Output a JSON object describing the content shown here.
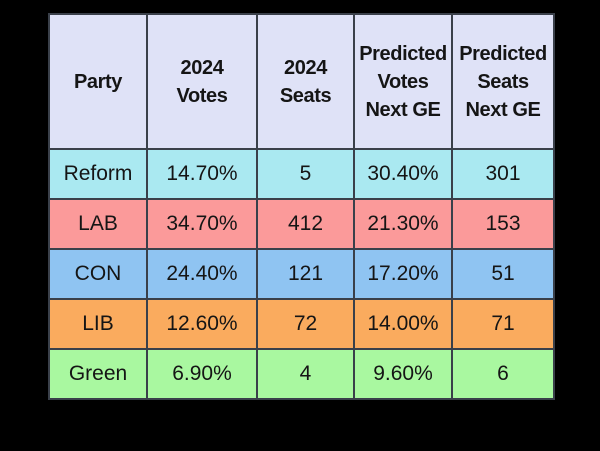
{
  "colors": {
    "page_background": "#000000",
    "header_background": "#dfe2f7",
    "border": "#3a404a",
    "text": "#151515"
  },
  "table": {
    "headers": [
      {
        "id": "party",
        "label": "Party"
      },
      {
        "id": "votes_2024",
        "label": "2024\nVotes"
      },
      {
        "id": "seats_2024",
        "label": "2024\nSeats"
      },
      {
        "id": "predicted_votes",
        "label": "Predicted\nVotes\nNext GE"
      },
      {
        "id": "predicted_seats",
        "label": "Predicted\nSeats\nNext GE"
      }
    ],
    "rows": [
      {
        "party": "Reform",
        "votes_2024": "14.70%",
        "seats_2024": "5",
        "predicted_votes": "30.40%",
        "predicted_seats": "301",
        "row_color": "#aae9f1"
      },
      {
        "party": "LAB",
        "votes_2024": "34.70%",
        "seats_2024": "412",
        "predicted_votes": "21.30%",
        "predicted_seats": "153",
        "row_color": "#fb9a9a"
      },
      {
        "party": "CON",
        "votes_2024": "24.40%",
        "seats_2024": "121",
        "predicted_votes": "17.20%",
        "predicted_seats": "51",
        "row_color": "#8fc4f2"
      },
      {
        "party": "LIB",
        "votes_2024": "12.60%",
        "seats_2024": "72",
        "predicted_votes": "14.00%",
        "predicted_seats": "71",
        "row_color": "#faab5e"
      },
      {
        "party": "Green",
        "votes_2024": "6.90%",
        "seats_2024": "4",
        "predicted_votes": "9.60%",
        "predicted_seats": "6",
        "row_color": "#a9f8a0"
      }
    ]
  },
  "chart_data": {
    "type": "table",
    "columns": [
      "Party",
      "2024 Votes",
      "2024 Seats",
      "Predicted Votes Next GE",
      "Predicted Seats Next GE"
    ],
    "rows": [
      [
        "Reform",
        "14.70%",
        5,
        "30.40%",
        301
      ],
      [
        "LAB",
        "34.70%",
        412,
        "21.30%",
        153
      ],
      [
        "CON",
        "24.40%",
        121,
        "17.20%",
        51
      ],
      [
        "LIB",
        "12.60%",
        72,
        "14.00%",
        71
      ],
      [
        "Green",
        "6.90%",
        4,
        "9.60%",
        6
      ]
    ],
    "series": [
      {
        "name": "2024 Votes (%)",
        "categories": [
          "Reform",
          "LAB",
          "CON",
          "LIB",
          "Green"
        ],
        "values": [
          14.7,
          34.7,
          24.4,
          12.6,
          6.9
        ]
      },
      {
        "name": "2024 Seats",
        "categories": [
          "Reform",
          "LAB",
          "CON",
          "LIB",
          "Green"
        ],
        "values": [
          5,
          412,
          121,
          72,
          4
        ]
      },
      {
        "name": "Predicted Votes Next GE (%)",
        "categories": [
          "Reform",
          "LAB",
          "CON",
          "LIB",
          "Green"
        ],
        "values": [
          30.4,
          21.3,
          17.2,
          14.0,
          9.6
        ]
      },
      {
        "name": "Predicted Seats Next GE",
        "categories": [
          "Reform",
          "LAB",
          "CON",
          "LIB",
          "Green"
        ],
        "values": [
          301,
          153,
          51,
          71,
          6
        ]
      }
    ]
  }
}
